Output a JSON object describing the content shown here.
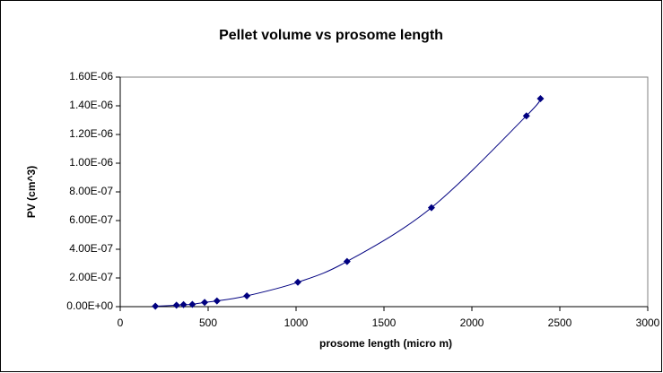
{
  "chart_data": {
    "type": "scatter",
    "title": "Pellet volume vs prosome length",
    "x_label": "prosome length (micro m)",
    "y_label": "PV (cm^3)",
    "series": [
      {
        "name": "PV",
        "color": "#000080",
        "x": [
          200,
          320,
          360,
          410,
          480,
          550,
          720,
          1010,
          1290,
          1770,
          2310,
          2390
        ],
        "values": [
          3e-09,
          1e-08,
          1.4e-08,
          1.6e-08,
          3e-08,
          4e-08,
          7.5e-08,
          1.7e-07,
          3.15e-07,
          6.9e-07,
          1.33e-06,
          1.45e-06
        ]
      }
    ],
    "xlim": [
      0,
      3000
    ],
    "xticks": [
      0,
      500,
      1000,
      1500,
      2000,
      2500,
      3000
    ],
    "ylim": [
      0,
      1.6e-06
    ],
    "yticks": [
      {
        "value": 0,
        "label": "0.00E+00"
      },
      {
        "value": 2e-07,
        "label": "2.00E-07"
      },
      {
        "value": 4e-07,
        "label": "4.00E-07"
      },
      {
        "value": 6e-07,
        "label": "6.00E-07"
      },
      {
        "value": 8e-07,
        "label": "8.00E-07"
      },
      {
        "value": 1e-06,
        "label": "1.00E-06"
      },
      {
        "value": 1.2e-06,
        "label": "1.20E-06"
      },
      {
        "value": 1.4e-06,
        "label": "1.40E-06"
      },
      {
        "value": 1.6e-06,
        "label": "1.60E-06"
      }
    ],
    "smooth": true
  }
}
